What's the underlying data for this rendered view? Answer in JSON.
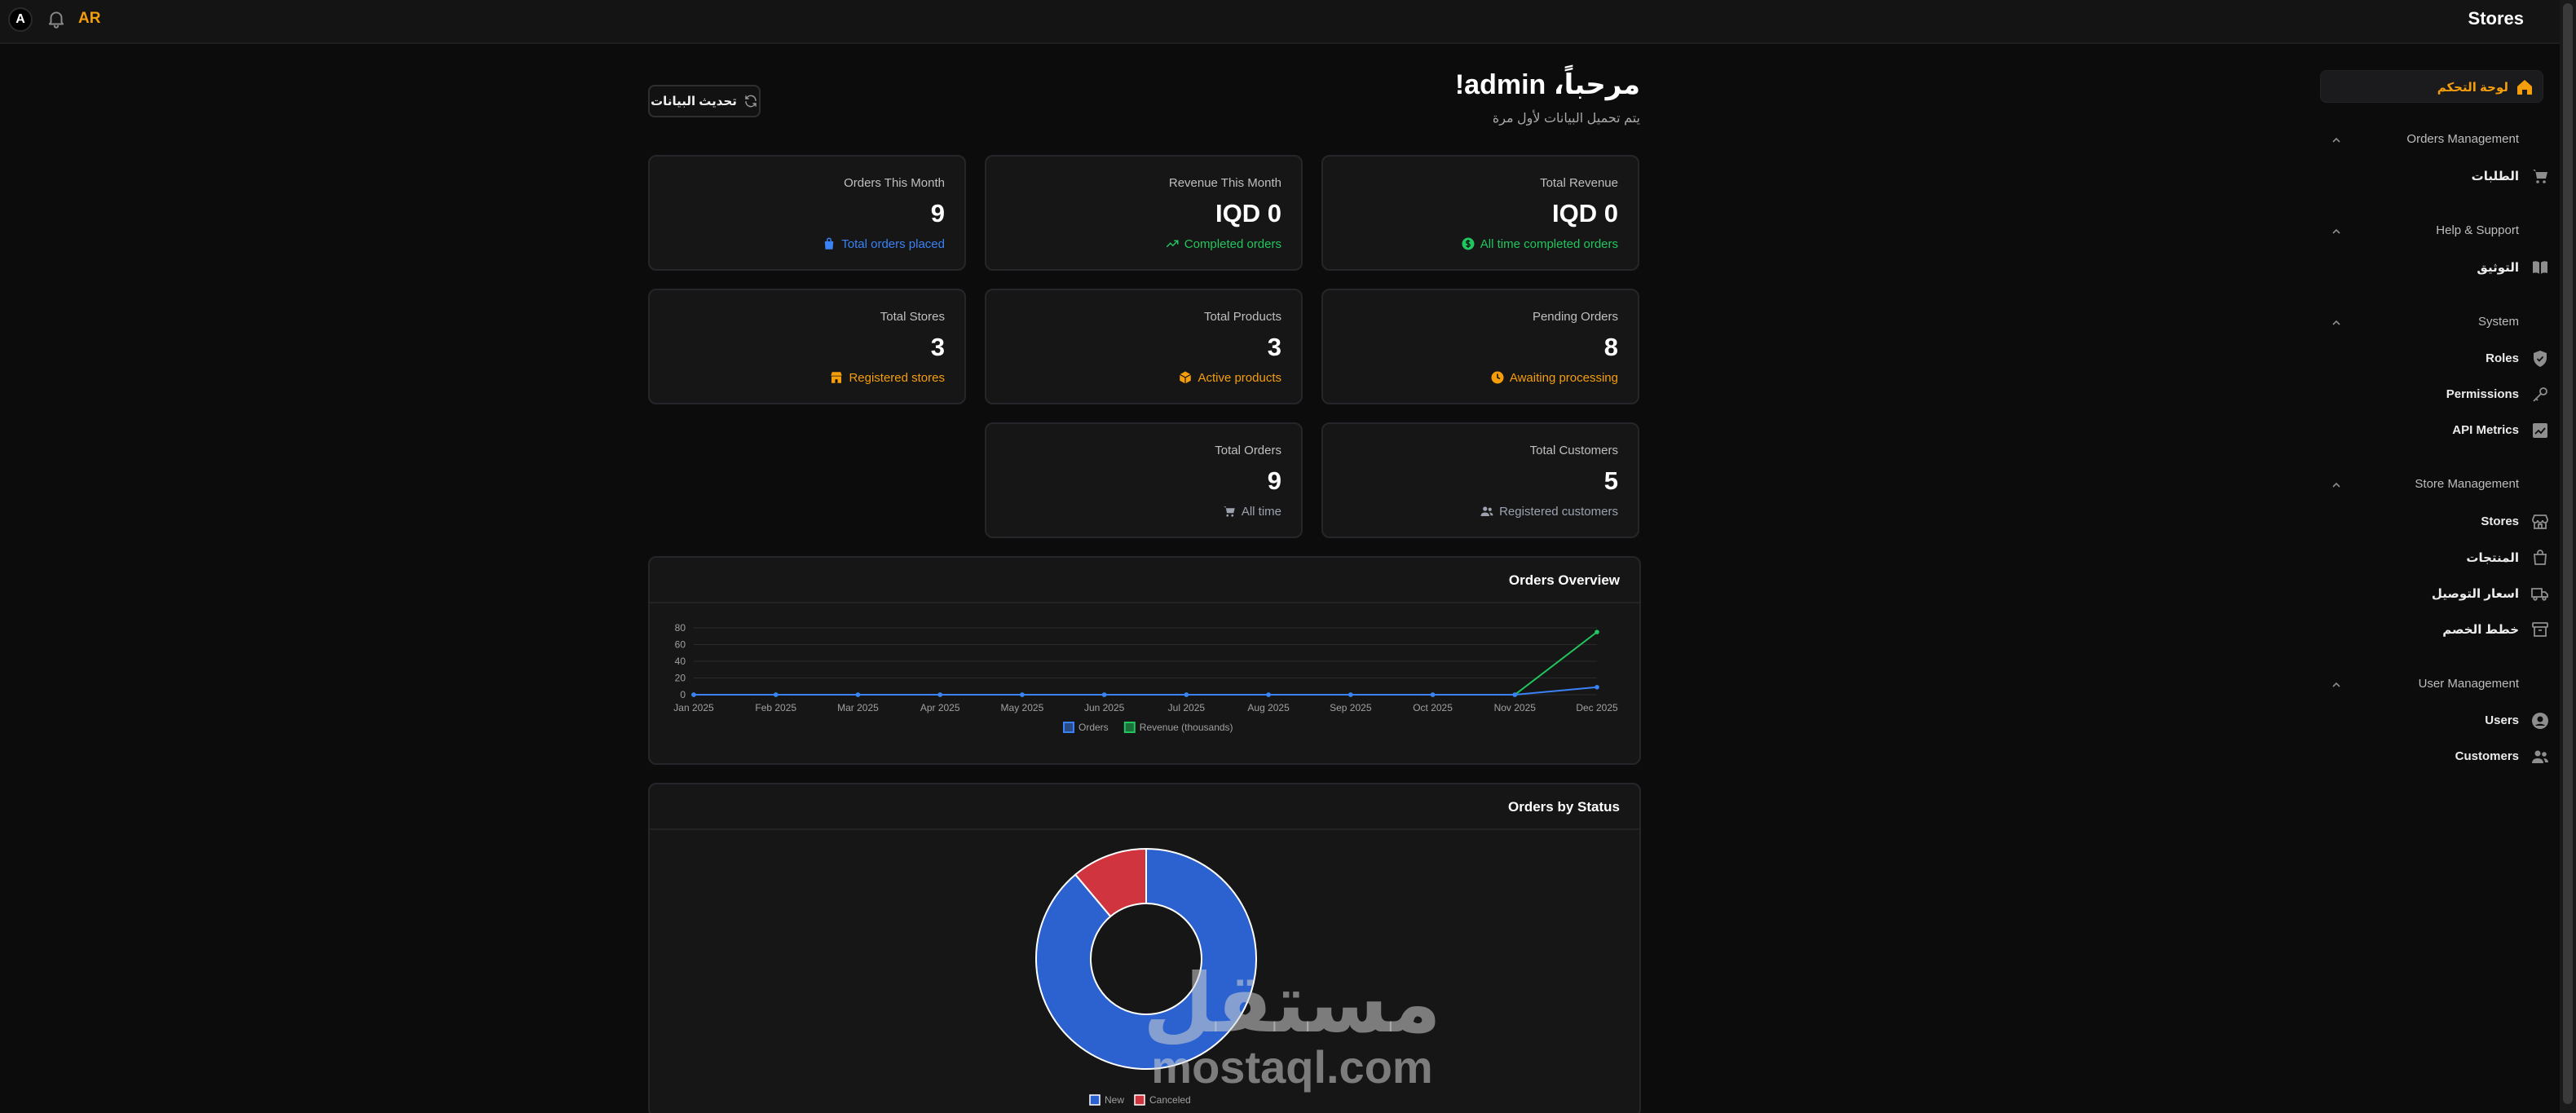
{
  "topbar": {
    "avatar_initial": "A",
    "lang": "AR",
    "app_title": "Stores"
  },
  "header": {
    "greeting": "مرحباً، admin!",
    "subtitle": "يتم تحميل البيانات لأول مرة",
    "refresh_label": "تحديث البيانات"
  },
  "sidebar": {
    "dashboard": "لوحة التحكم",
    "sections": [
      {
        "title": "Orders Management",
        "items": [
          {
            "label": "الطلبات",
            "icon": "cart-icon"
          }
        ]
      },
      {
        "title": "Help & Support",
        "items": [
          {
            "label": "التوثيق",
            "icon": "book-icon"
          }
        ]
      },
      {
        "title": "System",
        "items": [
          {
            "label": "Roles",
            "icon": "shield-icon"
          },
          {
            "label": "Permissions",
            "icon": "key-icon"
          },
          {
            "label": "API Metrics",
            "icon": "chart-icon"
          }
        ]
      },
      {
        "title": "Store Management",
        "items": [
          {
            "label": "Stores",
            "icon": "store-icon"
          },
          {
            "label": "المنتجات",
            "icon": "bag-icon"
          },
          {
            "label": "اسعار التوصيل",
            "icon": "truck-icon"
          },
          {
            "label": "خطط الخصم",
            "icon": "archive-icon"
          }
        ]
      },
      {
        "title": "User Management",
        "items": [
          {
            "label": "Users",
            "icon": "user-icon"
          },
          {
            "label": "Customers",
            "icon": "users-icon"
          }
        ]
      }
    ]
  },
  "cards": [
    {
      "title": "Total Revenue",
      "value": "IQD 0",
      "sub": "All time completed orders",
      "color": "#22c55e",
      "icon": "dollar-icon"
    },
    {
      "title": "Revenue This Month",
      "value": "IQD 0",
      "sub": "Completed orders",
      "color": "#22c55e",
      "icon": "trend-icon"
    },
    {
      "title": "Orders This Month",
      "value": "9",
      "sub": "Total orders placed",
      "color": "#3b82f6",
      "icon": "bag-icon"
    },
    {
      "title": "Pending Orders",
      "value": "8",
      "sub": "Awaiting processing",
      "color": "#f59e0b",
      "icon": "clock-icon"
    },
    {
      "title": "Total Products",
      "value": "3",
      "sub": "Active products",
      "color": "#f59e0b",
      "icon": "box-icon"
    },
    {
      "title": "Total Stores",
      "value": "3",
      "sub": "Registered stores",
      "color": "#f59e0b",
      "icon": "store-icon"
    },
    {
      "title": "Total Customers",
      "value": "5",
      "sub": "Registered customers",
      "color": "#9ca3af",
      "icon": "users-icon"
    },
    {
      "title": "Total Orders",
      "value": "9",
      "sub": "All time",
      "color": "#9ca3af",
      "icon": "cart-icon"
    }
  ],
  "orders_overview": {
    "title": "Orders Overview"
  },
  "orders_by_status": {
    "title": "Orders by Status"
  },
  "chart_data": [
    {
      "type": "line",
      "title": "Orders Overview",
      "categories": [
        "Jan 2025",
        "Feb 2025",
        "Mar 2025",
        "Apr 2025",
        "May 2025",
        "Jun 2025",
        "Jul 2025",
        "Aug 2025",
        "Sep 2025",
        "Oct 2025",
        "Nov 2025",
        "Dec 2025"
      ],
      "yticks": [
        0,
        20,
        40,
        60,
        80
      ],
      "ylim": [
        0,
        80
      ],
      "grid": true,
      "legend": "bottom",
      "series": [
        {
          "name": "Orders",
          "color": "#3b82f6",
          "values": [
            0,
            0,
            0,
            0,
            0,
            0,
            0,
            0,
            0,
            0,
            0,
            9
          ]
        },
        {
          "name": "Revenue (thousands)",
          "color": "#22c55e",
          "values": [
            0,
            0,
            0,
            0,
            0,
            0,
            0,
            0,
            0,
            0,
            0,
            75
          ]
        }
      ]
    },
    {
      "type": "pie",
      "title": "Orders by Status",
      "legend": "bottom",
      "labels": [
        "New",
        "Canceled"
      ],
      "values": [
        8,
        1
      ],
      "colors": [
        "#2c62d0",
        "#d0343e"
      ]
    }
  ],
  "watermark": {
    "text_ar": "مستقل",
    "text_en": "mostaql.com"
  }
}
